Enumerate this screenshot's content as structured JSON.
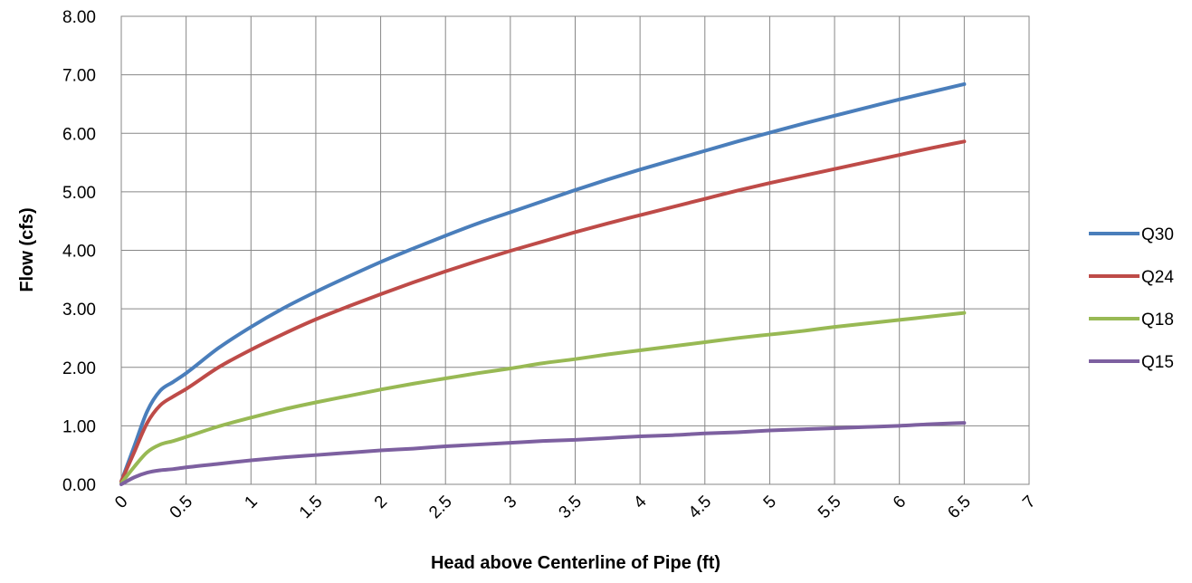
{
  "chart_data": {
    "type": "line",
    "title": "",
    "xlabel": "Head above Centerline of Pipe (ft)",
    "ylabel": "Flow (cfs)",
    "xlim": [
      0,
      7
    ],
    "ylim": [
      0,
      8
    ],
    "x_ticks": [
      "0",
      "0.5",
      "1",
      "1.5",
      "2",
      "2.5",
      "3",
      "3.5",
      "4",
      "4.5",
      "5",
      "5.5",
      "6",
      "6.5",
      "7"
    ],
    "y_ticks": [
      "0.00",
      "1.00",
      "2.00",
      "3.00",
      "4.00",
      "5.00",
      "6.00",
      "7.00",
      "8.00"
    ],
    "grid": true,
    "legend_position": "right",
    "x": [
      0,
      0.1,
      0.2,
      0.3,
      0.4,
      0.5,
      0.75,
      1,
      1.25,
      1.5,
      1.75,
      2,
      2.25,
      2.5,
      2.75,
      3,
      3.25,
      3.5,
      3.75,
      4,
      4.25,
      4.5,
      4.75,
      5,
      5.25,
      5.5,
      5.75,
      6,
      6.25,
      6.5
    ],
    "series": [
      {
        "name": "Q30",
        "color": "#4a7ebb",
        "values": [
          0.05,
          0.65,
          1.25,
          1.6,
          1.75,
          1.9,
          2.33,
          2.69,
          3.01,
          3.29,
          3.55,
          3.8,
          4.03,
          4.25,
          4.46,
          4.65,
          4.84,
          5.03,
          5.21,
          5.38,
          5.54,
          5.7,
          5.86,
          6.01,
          6.16,
          6.3,
          6.44,
          6.58,
          6.71,
          6.84
        ]
      },
      {
        "name": "Q24",
        "color": "#be4b48",
        "values": [
          0.05,
          0.55,
          1.05,
          1.35,
          1.5,
          1.63,
          2.0,
          2.3,
          2.57,
          2.82,
          3.04,
          3.25,
          3.45,
          3.64,
          3.82,
          3.99,
          4.15,
          4.31,
          4.46,
          4.6,
          4.74,
          4.88,
          5.02,
          5.15,
          5.27,
          5.39,
          5.51,
          5.63,
          5.75,
          5.86
        ]
      },
      {
        "name": "Q18",
        "color": "#98b954",
        "values": [
          0.02,
          0.3,
          0.55,
          0.68,
          0.74,
          0.81,
          0.99,
          1.14,
          1.28,
          1.4,
          1.51,
          1.62,
          1.72,
          1.81,
          1.9,
          1.98,
          2.07,
          2.14,
          2.22,
          2.29,
          2.36,
          2.43,
          2.5,
          2.56,
          2.62,
          2.69,
          2.75,
          2.81,
          2.87,
          2.93
        ]
      },
      {
        "name": "Q15",
        "color": "#7d60a0",
        "values": [
          0.0,
          0.12,
          0.2,
          0.24,
          0.26,
          0.29,
          0.35,
          0.41,
          0.46,
          0.5,
          0.54,
          0.58,
          0.61,
          0.65,
          0.68,
          0.71,
          0.74,
          0.76,
          0.79,
          0.82,
          0.84,
          0.87,
          0.89,
          0.92,
          0.94,
          0.96,
          0.98,
          1.0,
          1.03,
          1.05
        ]
      }
    ]
  }
}
